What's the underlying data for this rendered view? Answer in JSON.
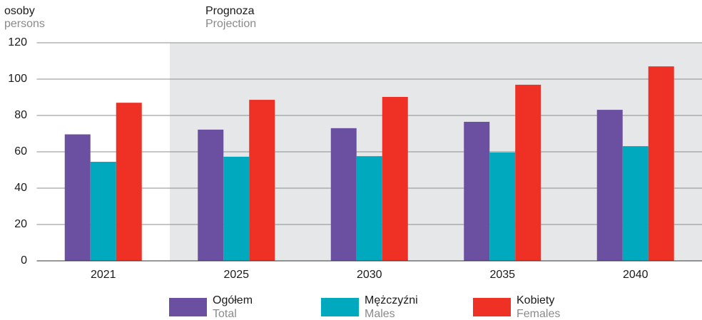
{
  "chart_data": {
    "type": "bar",
    "y_label": "osoby",
    "y_label_en": "persons",
    "projection": {
      "label": "Prognoza",
      "label_en": "Projection",
      "from_category": 1,
      "color": "#e6e7e9"
    },
    "categories": [
      "2021",
      "2025",
      "2030",
      "2035",
      "2040"
    ],
    "series": [
      {
        "name": "Ogółem",
        "name_en": "Total",
        "color": "#6b4fa0",
        "values": [
          69.6,
          72.2,
          73,
          76.5,
          83.1
        ]
      },
      {
        "name": "Mężczyźni",
        "name_en": "Males",
        "color": "#00a9bd",
        "values": [
          54.5,
          57.3,
          57.6,
          59.6,
          63.1
        ]
      },
      {
        "name": "Kobiety",
        "name_en": "Females",
        "color": "#ee3124",
        "values": [
          87,
          88.6,
          90.2,
          96.9,
          107
        ]
      }
    ],
    "ylim": [
      0,
      120
    ],
    "yticks": [
      0,
      20,
      40,
      60,
      80,
      100,
      120
    ],
    "grid": true
  }
}
